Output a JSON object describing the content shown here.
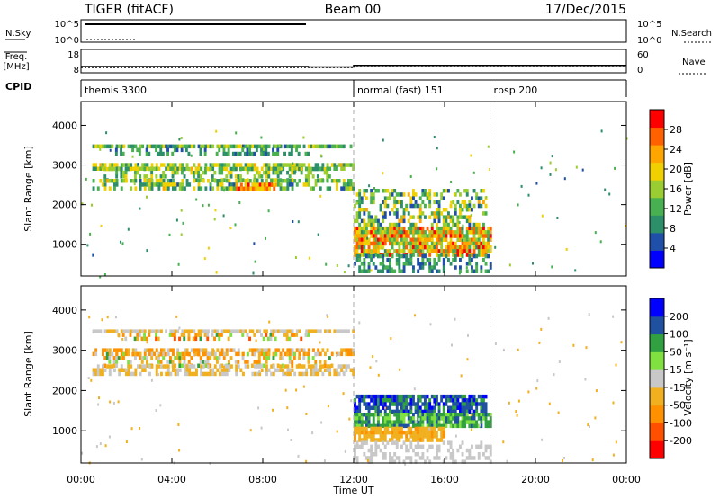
{
  "header": {
    "radar": "TIGER (fitACF)",
    "beam": "Beam 00",
    "date": "17/Dec/2015"
  },
  "strip_labels": {
    "nsky": "N.Sky",
    "nsearch": "N.Search",
    "freq_line1": "Freq.",
    "freq_line2": "[MHz]",
    "nave": "Nave",
    "cpid": "CPID",
    "nsky_ticks": [
      "10^5",
      "10^0"
    ],
    "nsearch_ticks": [
      "10^5",
      "10^0"
    ],
    "freq_ticks": [
      "18",
      "8"
    ],
    "nave_ticks": [
      "60",
      "0"
    ]
  },
  "cpid_segments": [
    {
      "start_hour": 0,
      "label": "themis 3300"
    },
    {
      "start_hour": 12,
      "label": "normal (fast) 151"
    },
    {
      "start_hour": 18,
      "label": "rbsp 200"
    }
  ],
  "time_axis": {
    "title": "Time UT",
    "range_hours": [
      0,
      24
    ],
    "tick_hours": [
      0,
      4,
      8,
      12,
      16,
      20,
      24
    ],
    "tick_labels": [
      "00:00",
      "04:00",
      "08:00",
      "12:00",
      "16:00",
      "20:00",
      "00:00"
    ]
  },
  "range_axis": {
    "title": "Slant Range [km]",
    "range_km": [
      200,
      4600
    ],
    "tick_values": [
      1000,
      2000,
      3000,
      4000
    ],
    "tick_labels": [
      "1000",
      "2000",
      "3000",
      "4000"
    ]
  },
  "power_scale": {
    "title": "Power [dB]",
    "range": [
      0,
      32
    ],
    "colors": [
      "#0000ff",
      "#1f4fa8",
      "#2d8f6a",
      "#48b050",
      "#9acd32",
      "#f0d000",
      "#ffa500",
      "#ff6000",
      "#ff0000"
    ],
    "tick_values": [
      4,
      8,
      12,
      16,
      20,
      24,
      28
    ],
    "tick_labels": [
      "4",
      "8",
      "12",
      "16",
      "20",
      "24",
      "28"
    ]
  },
  "velocity_scale": {
    "title": "Velocity [m s⁻¹]",
    "colors": [
      "#ff0000",
      "#ff5000",
      "#ff9000",
      "#f0b020",
      "#c8c8c8",
      "#80e040",
      "#30a040",
      "#2050a0",
      "#0000ff"
    ],
    "tick_labels": [
      "-200",
      "-100",
      "-50",
      "-15",
      "15",
      "50",
      "100",
      "200"
    ]
  },
  "chart_data": {
    "type": "heatmap",
    "x_unit": "hour UT",
    "y_unit": "km",
    "frequency_mhz": [
      {
        "start_hour": 0,
        "end_hour": 10,
        "value": 10.5
      },
      {
        "start_hour": 10,
        "end_hour": 12,
        "value": 10.3
      },
      {
        "start_hour": 12,
        "end_hour": 24,
        "value": 11.0
      }
    ],
    "nave": [
      {
        "start_hour": 0,
        "end_hour": 12,
        "value": 12
      },
      {
        "start_hour": 12,
        "end_hour": 24,
        "value": 17
      }
    ],
    "power_regions": [
      {
        "t0": 0.5,
        "t1": 12.0,
        "r0": 3430,
        "r1": 3520,
        "dens": 0.85,
        "vmin": 6,
        "vmax": 20
      },
      {
        "t0": 1.5,
        "t1": 10.0,
        "r0": 3300,
        "r1": 3430,
        "dens": 0.45,
        "vmin": 6,
        "vmax": 14
      },
      {
        "t0": 0.5,
        "t1": 12.0,
        "r0": 2950,
        "r1": 3050,
        "dens": 0.7,
        "vmin": 8,
        "vmax": 22
      },
      {
        "t0": 1.0,
        "t1": 11.0,
        "r0": 2650,
        "r1": 2950,
        "dens": 0.4,
        "vmin": 8,
        "vmax": 20
      },
      {
        "t0": 0.5,
        "t1": 12.0,
        "r0": 2380,
        "r1": 2650,
        "dens": 0.55,
        "vmin": 6,
        "vmax": 22
      },
      {
        "t0": 6.8,
        "t1": 8.5,
        "r0": 2380,
        "r1": 2550,
        "dens": 0.9,
        "vmin": 18,
        "vmax": 30
      },
      {
        "t0": 12.0,
        "t1": 17.8,
        "r0": 1450,
        "r1": 2400,
        "dens": 0.45,
        "vmin": 4,
        "vmax": 22
      },
      {
        "t0": 12.0,
        "t1": 18.0,
        "r0": 750,
        "r1": 1450,
        "dens": 0.85,
        "vmin": 10,
        "vmax": 30
      },
      {
        "t0": 12.0,
        "t1": 18.0,
        "r0": 280,
        "r1": 750,
        "dens": 0.4,
        "vmin": 4,
        "vmax": 14
      }
    ],
    "velocity_regions": [
      {
        "t0": 0.5,
        "t1": 12.0,
        "r0": 3430,
        "r1": 3520,
        "dens": 0.85,
        "vmin": -50,
        "vmax": 15
      },
      {
        "t0": 1.5,
        "t1": 10.0,
        "r0": 3300,
        "r1": 3430,
        "dens": 0.4,
        "vmin": -120,
        "vmax": 60
      },
      {
        "t0": 0.5,
        "t1": 12.0,
        "r0": 2950,
        "r1": 3050,
        "dens": 0.65,
        "vmin": -100,
        "vmax": 15
      },
      {
        "t0": 1.0,
        "t1": 11.0,
        "r0": 2650,
        "r1": 2950,
        "dens": 0.35,
        "vmin": -100,
        "vmax": 60
      },
      {
        "t0": 0.5,
        "t1": 12.0,
        "r0": 2380,
        "r1": 2650,
        "dens": 0.55,
        "vmin": -50,
        "vmax": 15
      },
      {
        "t0": 12.0,
        "t1": 17.8,
        "r0": 1450,
        "r1": 1900,
        "dens": 0.75,
        "vmin": 60,
        "vmax": 260
      },
      {
        "t0": 12.0,
        "t1": 18.0,
        "r0": 1100,
        "r1": 1450,
        "dens": 0.85,
        "vmin": 15,
        "vmax": 120
      },
      {
        "t0": 12.0,
        "t1": 16.0,
        "r0": 750,
        "r1": 1100,
        "dens": 0.8,
        "vmin": -60,
        "vmax": -15
      },
      {
        "t0": 12.0,
        "t1": 18.0,
        "r0": 280,
        "r1": 750,
        "dens": 0.4,
        "vmin": -15,
        "vmax": 15
      }
    ]
  }
}
